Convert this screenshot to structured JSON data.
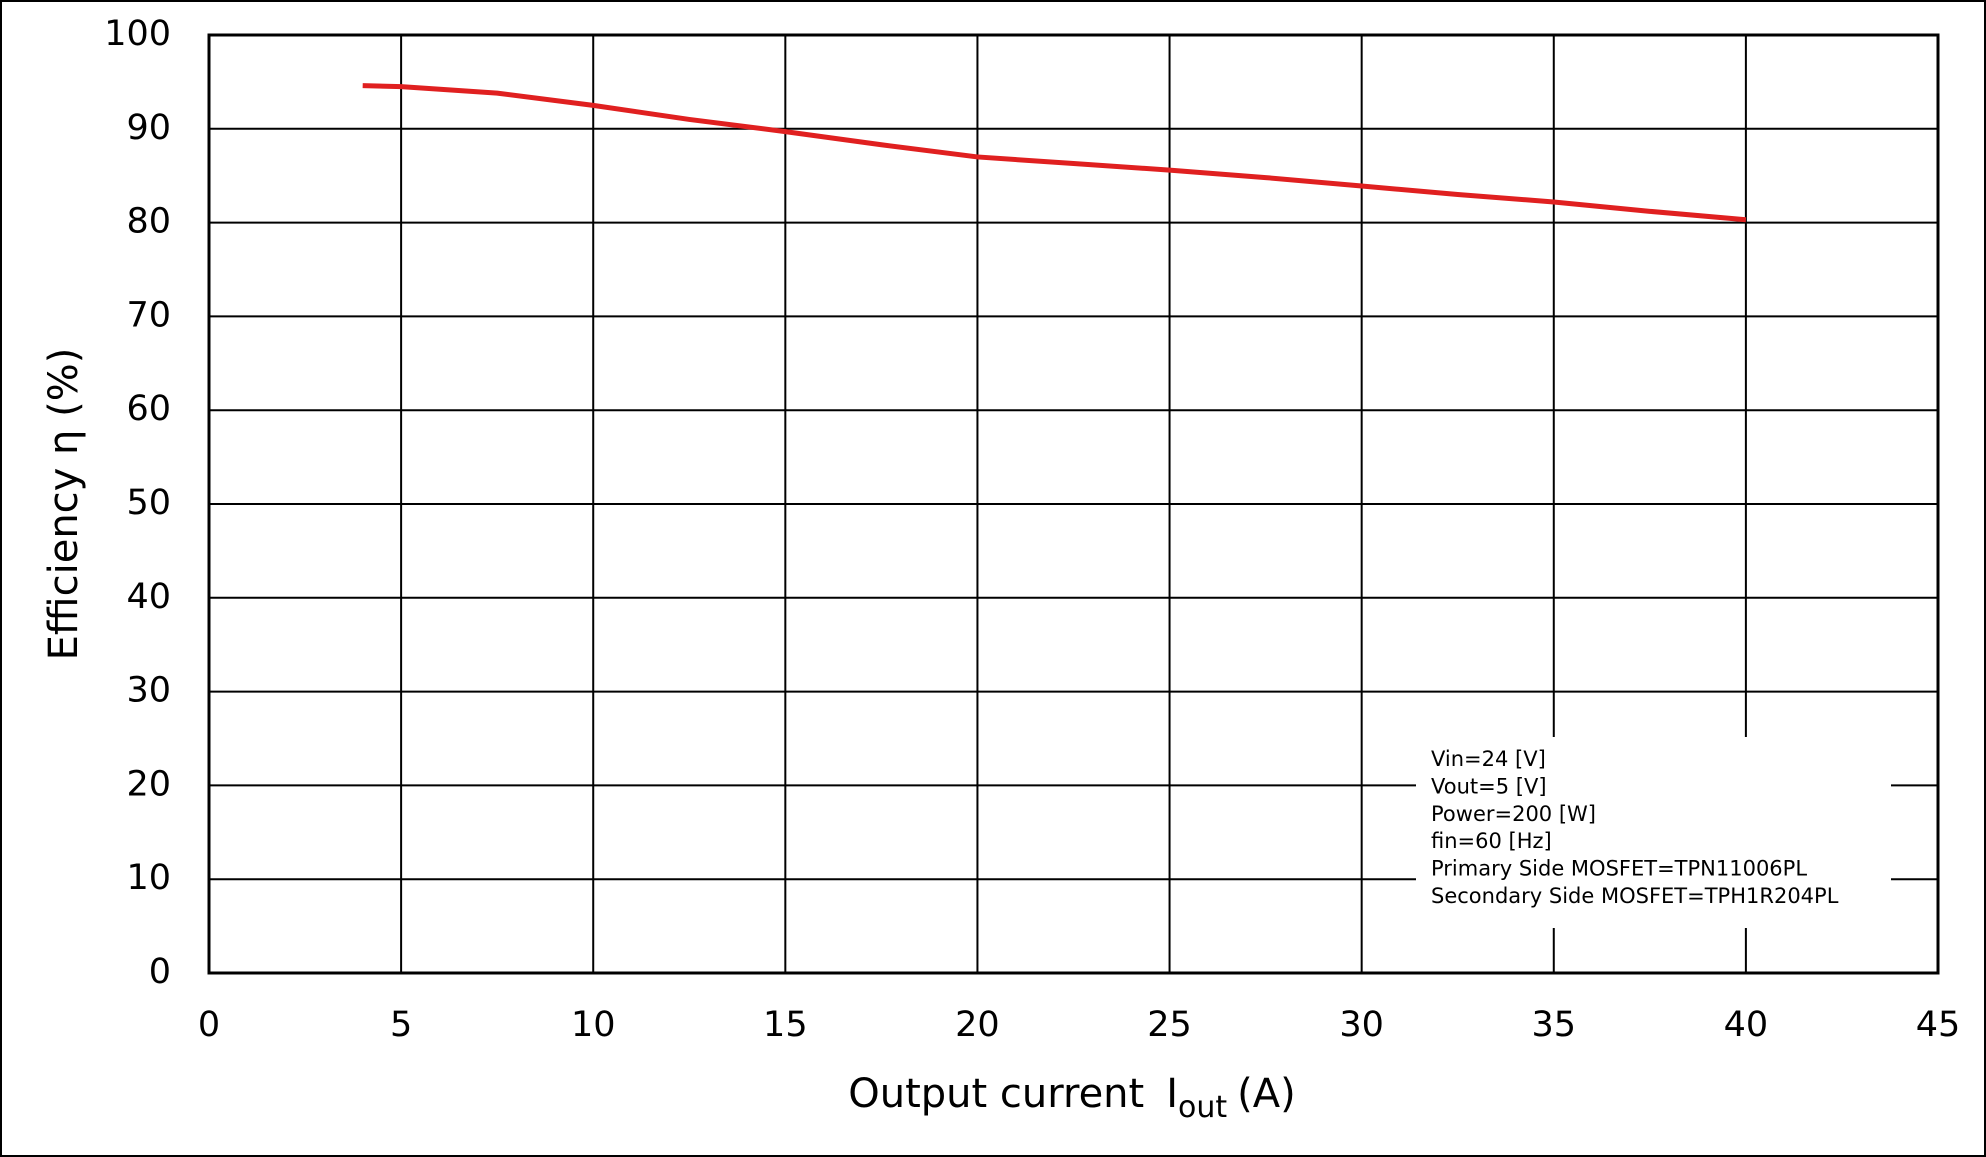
{
  "chart_data": {
    "type": "line",
    "xlabel": "Output current",
    "xlabel_symbol": "I",
    "xlabel_subscript": "out",
    "xlabel_unit": "(A)",
    "ylabel": "Efficiency  η (%)",
    "x": [
      4,
      5,
      7.5,
      10,
      12.5,
      15,
      17.5,
      20,
      22.5,
      25,
      27.5,
      30,
      32.5,
      35,
      37.5,
      40
    ],
    "series": [
      {
        "name": "Efficiency",
        "color": "#e02020",
        "values": [
          94.6,
          94.5,
          93.8,
          92.5,
          91,
          89.7,
          88.3,
          87,
          86.3,
          85.6,
          84.8,
          83.9,
          83,
          82.2,
          81.2,
          80.3
        ]
      }
    ],
    "xlim": [
      0,
      45
    ],
    "xticks": [
      0,
      5,
      10,
      15,
      20,
      25,
      30,
      35,
      40,
      45
    ],
    "ylim": [
      0,
      100
    ],
    "yticks": [
      0,
      10,
      20,
      30,
      40,
      50,
      60,
      70,
      80,
      90,
      100
    ],
    "grid": true,
    "annotations": [
      "Vin=24 [V]",
      "Vout=5 [V]",
      "Power=200 [W]",
      "fin=60 [Hz]",
      "Primary Side MOSFET=TPN11006PL",
      "Secondary Side MOSFET=TPH1R204PL"
    ]
  }
}
